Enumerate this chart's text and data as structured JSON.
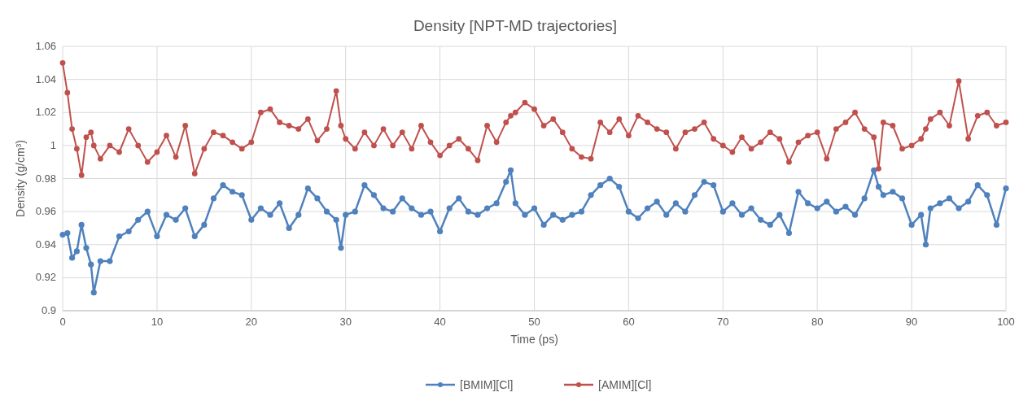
{
  "chart_data": {
    "type": "line",
    "title": "Density [NPT-MD trajectories]",
    "xlabel": "Time (ps)",
    "ylabel": "Density (g/cm³)",
    "x": [
      0,
      0.5,
      1,
      1.5,
      2,
      2.5,
      3,
      3.3,
      4,
      5,
      6,
      7,
      8,
      9,
      10,
      11,
      12,
      13,
      14,
      15,
      16,
      17,
      18,
      19,
      20,
      21,
      22,
      23,
      24,
      25,
      26,
      27,
      28,
      29,
      29.5,
      30,
      31,
      32,
      33,
      34,
      35,
      36,
      37,
      38,
      39,
      40,
      41,
      42,
      43,
      44,
      45,
      46,
      47,
      47.5,
      48,
      49,
      50,
      51,
      52,
      53,
      54,
      55,
      56,
      57,
      58,
      59,
      60,
      61,
      62,
      63,
      64,
      65,
      66,
      67,
      68,
      69,
      70,
      71,
      72,
      73,
      74,
      75,
      76,
      77,
      78,
      79,
      80,
      81,
      82,
      83,
      84,
      85,
      86,
      86.5,
      87,
      88,
      89,
      90,
      91,
      91.5,
      92,
      93,
      94,
      95,
      96,
      97,
      98,
      99,
      100
    ],
    "series": [
      {
        "name": "[BMIM][Cl]",
        "color": "#4f81bd",
        "values": [
          0.946,
          0.947,
          0.932,
          0.936,
          0.952,
          0.938,
          0.928,
          0.911,
          0.93,
          0.93,
          0.945,
          0.948,
          0.955,
          0.96,
          0.945,
          0.958,
          0.955,
          0.962,
          0.945,
          0.952,
          0.968,
          0.976,
          0.972,
          0.97,
          0.955,
          0.962,
          0.958,
          0.965,
          0.95,
          0.958,
          0.974,
          0.968,
          0.96,
          0.955,
          0.938,
          0.958,
          0.96,
          0.976,
          0.97,
          0.962,
          0.96,
          0.968,
          0.962,
          0.958,
          0.96,
          0.948,
          0.962,
          0.968,
          0.96,
          0.958,
          0.962,
          0.965,
          0.978,
          0.985,
          0.965,
          0.958,
          0.962,
          0.952,
          0.958,
          0.955,
          0.958,
          0.96,
          0.97,
          0.976,
          0.98,
          0.975,
          0.96,
          0.956,
          0.962,
          0.966,
          0.958,
          0.965,
          0.96,
          0.97,
          0.978,
          0.976,
          0.96,
          0.965,
          0.958,
          0.962,
          0.955,
          0.952,
          0.958,
          0.947,
          0.972,
          0.965,
          0.962,
          0.966,
          0.96,
          0.963,
          0.958,
          0.968,
          0.985,
          0.975,
          0.97,
          0.972,
          0.968,
          0.952,
          0.958,
          0.94,
          0.962,
          0.965,
          0.968,
          0.962,
          0.966,
          0.976,
          0.97,
          0.952,
          0.974
        ]
      },
      {
        "name": "[AMIM][Cl]",
        "color": "#c0504d",
        "values": [
          1.05,
          1.032,
          1.01,
          0.998,
          0.982,
          1.005,
          1.008,
          1.0,
          0.992,
          1.0,
          0.996,
          1.01,
          1.0,
          0.99,
          0.996,
          1.006,
          0.993,
          1.012,
          0.983,
          0.998,
          1.008,
          1.006,
          1.002,
          0.998,
          1.002,
          1.02,
          1.022,
          1.014,
          1.012,
          1.01,
          1.016,
          1.003,
          1.01,
          1.033,
          1.012,
          1.004,
          0.998,
          1.008,
          1.0,
          1.01,
          1.0,
          1.008,
          0.998,
          1.012,
          1.002,
          0.994,
          1.0,
          1.004,
          0.998,
          0.991,
          1.012,
          1.002,
          1.014,
          1.018,
          1.02,
          1.026,
          1.022,
          1.012,
          1.016,
          1.008,
          0.998,
          0.993,
          0.992,
          1.014,
          1.008,
          1.016,
          1.006,
          1.018,
          1.014,
          1.01,
          1.008,
          0.998,
          1.008,
          1.01,
          1.014,
          1.004,
          1.0,
          0.996,
          1.005,
          0.998,
          1.002,
          1.008,
          1.004,
          0.99,
          1.002,
          1.006,
          1.008,
          0.992,
          1.01,
          1.014,
          1.02,
          1.01,
          1.005,
          0.986,
          1.014,
          1.012,
          0.998,
          1.0,
          1.004,
          1.01,
          1.016,
          1.02,
          1.012,
          1.039,
          1.004,
          1.018,
          1.02,
          1.012,
          1.014
        ]
      }
    ],
    "xlim": [
      0,
      100
    ],
    "xticks": [
      0,
      10,
      20,
      30,
      40,
      50,
      60,
      70,
      80,
      90,
      100
    ],
    "ylim": [
      0.9,
      1.06
    ],
    "yticks": [
      0.9,
      0.92,
      0.94,
      0.96,
      0.98,
      1,
      1.02,
      1.04,
      1.06
    ],
    "grid": true,
    "legend": "bottom",
    "marker": "circle",
    "line_style": "solid"
  }
}
